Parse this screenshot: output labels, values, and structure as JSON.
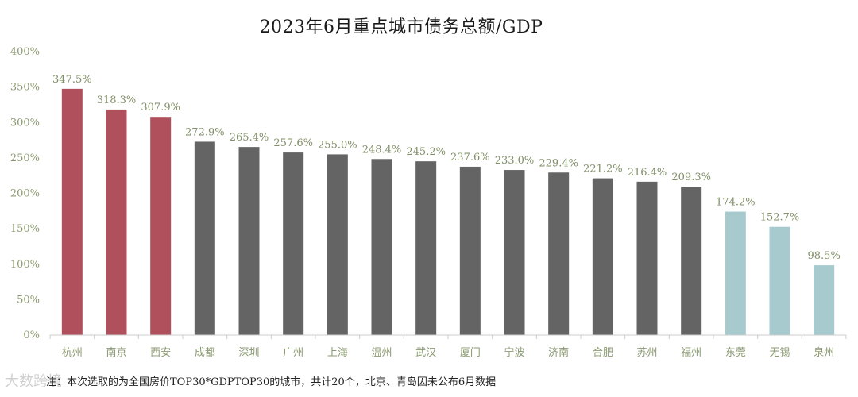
{
  "title": "2023年6月重点城市债务总额/GDP",
  "footnote": "注：本次选取的为全国房价TOP30*GDPTOP30的城市，共计20个，北京、青岛因未公布6月数据",
  "watermark": "大数跨境",
  "colors": {
    "group_top": "#b0505c",
    "group_mid": "#656465",
    "group_low": "#a6cacd",
    "tick_text": "#8a9a70",
    "axis_line": "#cccccc"
  },
  "chart_data": {
    "type": "bar",
    "title": "2023年6月重点城市债务总额/GDP",
    "xlabel": "",
    "ylabel": "",
    "ylim": [
      0,
      400
    ],
    "yticks": [
      0,
      50,
      100,
      150,
      200,
      250,
      300,
      350,
      400
    ],
    "ytick_labels": [
      "0%",
      "50%",
      "100%",
      "150%",
      "200%",
      "250%",
      "300%",
      "350%",
      "400%"
    ],
    "grid": false,
    "categories": [
      "杭州",
      "南京",
      "西安",
      "成都",
      "深圳",
      "广州",
      "上海",
      "温州",
      "武汉",
      "厦门",
      "宁波",
      "济南",
      "合肥",
      "苏州",
      "福州",
      "东莞",
      "无锡",
      "泉州"
    ],
    "values": [
      347.5,
      318.3,
      307.9,
      272.9,
      265.4,
      257.6,
      255.0,
      248.4,
      245.2,
      237.6,
      233.0,
      229.4,
      221.2,
      216.4,
      209.3,
      174.2,
      152.7,
      98.5
    ],
    "value_labels": [
      "347.5%",
      "318.3%",
      "307.9%",
      "272.9%",
      "265.4%",
      "257.6%",
      "255.0%",
      "248.4%",
      "245.2%",
      "237.6%",
      "233.0%",
      "229.4%",
      "221.2%",
      "216.4%",
      "209.3%",
      "174.2%",
      "152.7%",
      "98.5%"
    ],
    "bar_groups": [
      "top",
      "top",
      "top",
      "mid",
      "mid",
      "mid",
      "mid",
      "mid",
      "mid",
      "mid",
      "mid",
      "mid",
      "mid",
      "mid",
      "mid",
      "low",
      "low",
      "low"
    ]
  }
}
